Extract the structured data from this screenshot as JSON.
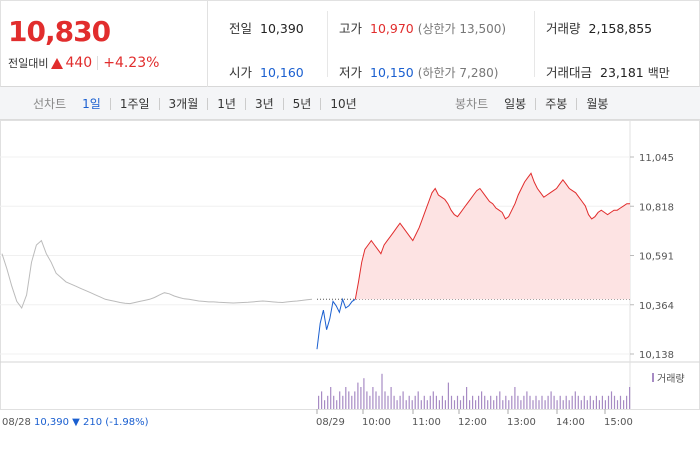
{
  "header": {
    "price": "10,830",
    "change_label": "전일대비",
    "change_amount": "440",
    "change_percent": "+4.23%",
    "stats": {
      "prev_close_label": "전일",
      "prev_close": "10,390",
      "open_label": "시가",
      "open": "10,160",
      "high_label": "고가",
      "high": "10,970",
      "upper_limit": "(상한가 13,500)",
      "low_label": "저가",
      "low": "10,150",
      "lower_limit": "(하한가 7,280)",
      "volume_label": "거래량",
      "volume": "2,158,855",
      "amount_label": "거래대금",
      "amount": "23,181",
      "amount_unit": "백만"
    }
  },
  "tabs": {
    "line_label": "선차트",
    "line_tabs": [
      "1일",
      "1주일",
      "3개월",
      "1년",
      "3년",
      "5년",
      "10년"
    ],
    "active_line_tab": 0,
    "candle_label": "봉차트",
    "candle_tabs": [
      "일봉",
      "주봉",
      "월봉"
    ]
  },
  "colors": {
    "up": "#e12d2d",
    "down": "#1a5fd0",
    "prev": "#bbbbbb",
    "volume": "#a78bc4"
  },
  "chart_data": {
    "type": "line",
    "ylim": [
      10138,
      11045
    ],
    "yticks": [
      "11,045",
      "10,818",
      "10,591",
      "10,364",
      "10,138"
    ],
    "baseline": 10390,
    "x_labels": [
      "08/29",
      "10:00",
      "11:00",
      "12:00",
      "13:00",
      "14:00",
      "15:00"
    ],
    "x_first_label": "08/28",
    "prev_day_summary": {
      "price": "10,390",
      "arrow": "▼",
      "change": "210",
      "pct": "(-1.98%)"
    },
    "volume_legend": "거래량",
    "series": [
      {
        "role": "previous-day",
        "values": [
          10600,
          10530,
          10450,
          10380,
          10350,
          10410,
          10560,
          10640,
          10660,
          10600,
          10560,
          10510,
          10490,
          10470,
          10460,
          10450,
          10440,
          10430,
          10420,
          10410,
          10400,
          10390,
          10385,
          10380,
          10375,
          10372,
          10370,
          10375,
          10380,
          10385,
          10390,
          10398,
          10410,
          10420,
          10415,
          10405,
          10398,
          10392,
          10390,
          10386,
          10382,
          10380,
          10378,
          10378,
          10376,
          10375,
          10374,
          10373,
          10374,
          10375,
          10376,
          10378,
          10380,
          10382,
          10380,
          10378,
          10376,
          10375,
          10378,
          10380,
          10382,
          10385,
          10388,
          10390
        ]
      },
      {
        "role": "today",
        "values": [
          10160,
          10280,
          10340,
          10250,
          10300,
          10380,
          10360,
          10330,
          10390,
          10350,
          10360,
          10380,
          10390,
          10470,
          10560,
          10620,
          10640,
          10660,
          10640,
          10620,
          10600,
          10640,
          10660,
          10680,
          10700,
          10720,
          10740,
          10720,
          10700,
          10680,
          10660,
          10690,
          10720,
          10760,
          10800,
          10840,
          10880,
          10900,
          10870,
          10860,
          10850,
          10830,
          10800,
          10780,
          10770,
          10790,
          10810,
          10830,
          10850,
          10870,
          10890,
          10900,
          10880,
          10860,
          10840,
          10830,
          10810,
          10800,
          10790,
          10760,
          10770,
          10800,
          10830,
          10870,
          10900,
          10930,
          10950,
          10970,
          10930,
          10900,
          10880,
          10860,
          10870,
          10880,
          10890,
          10900,
          10920,
          10940,
          10920,
          10900,
          10890,
          10880,
          10860,
          10840,
          10820,
          10780,
          10760,
          10770,
          10790,
          10800,
          10790,
          10780,
          10790,
          10800,
          10800,
          10810,
          10820,
          10830,
          10830
        ]
      }
    ],
    "volume": [
      0.3,
      0.4,
      0.2,
      0.3,
      0.5,
      0.3,
      0.2,
      0.4,
      0.3,
      0.5,
      0.4,
      0.3,
      0.4,
      0.6,
      0.5,
      0.7,
      0.4,
      0.3,
      0.5,
      0.4,
      0.3,
      0.8,
      0.4,
      0.3,
      0.5,
      0.3,
      0.2,
      0.3,
      0.4,
      0.2,
      0.3,
      0.2,
      0.3,
      0.4,
      0.2,
      0.3,
      0.2,
      0.3,
      0.4,
      0.3,
      0.2,
      0.3,
      0.2,
      0.6,
      0.3,
      0.2,
      0.3,
      0.2,
      0.3,
      0.5,
      0.2,
      0.3,
      0.2,
      0.3,
      0.4,
      0.3,
      0.2,
      0.3,
      0.2,
      0.3,
      0.4,
      0.2,
      0.3,
      0.2,
      0.3,
      0.5,
      0.3,
      0.2,
      0.3,
      0.4,
      0.3,
      0.2,
      0.3,
      0.2,
      0.3,
      0.2,
      0.3,
      0.4,
      0.3,
      0.2,
      0.3,
      0.2,
      0.3,
      0.2,
      0.3,
      0.4,
      0.3,
      0.2,
      0.3,
      0.2,
      0.3,
      0.2,
      0.3,
      0.2,
      0.3,
      0.2,
      0.3,
      0.4,
      0.3,
      0.2,
      0.3,
      0.2,
      0.3,
      0.5
    ]
  }
}
